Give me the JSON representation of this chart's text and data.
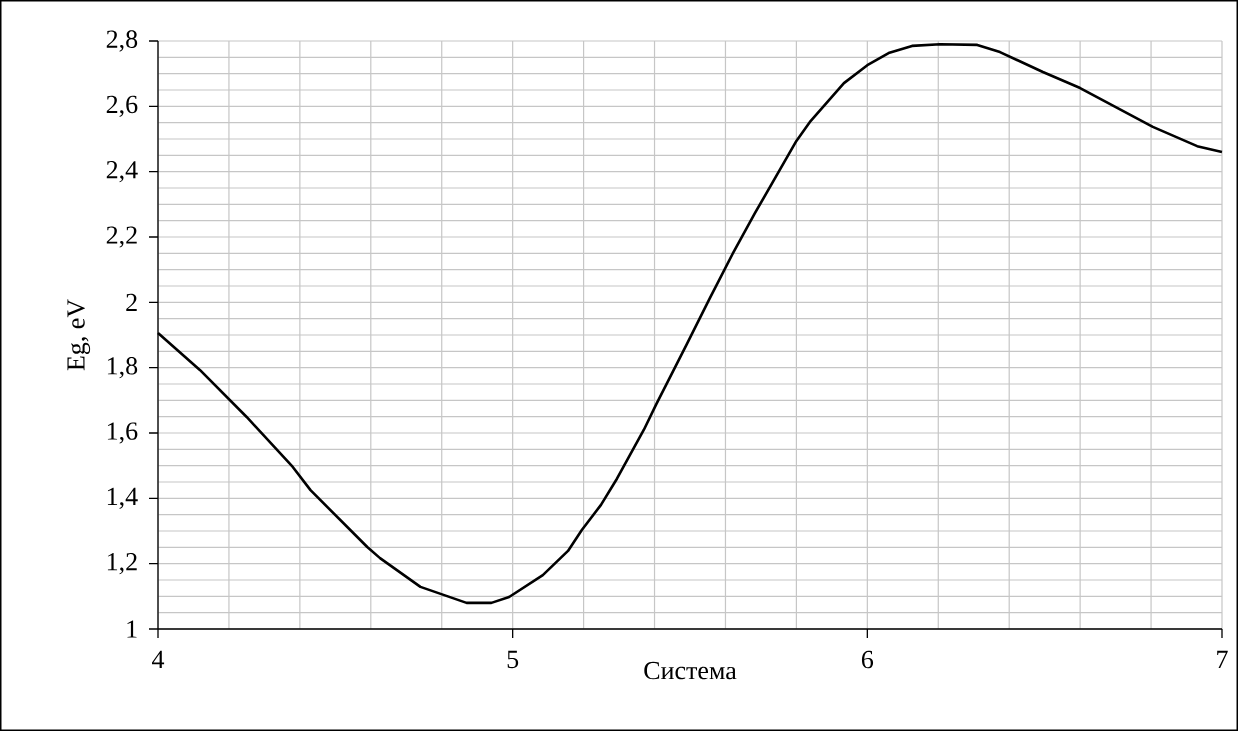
{
  "chart_data": {
    "type": "line",
    "xlabel": "Система",
    "ylabel": "Eg, eV",
    "color": "#000000",
    "grid": true,
    "marker": "none",
    "line_style": "solid",
    "x": [
      4.0,
      4.118,
      4.25,
      4.38,
      4.43,
      4.59,
      4.626,
      4.74,
      4.87,
      4.94,
      4.99,
      5.085,
      5.156,
      5.195,
      5.249,
      5.294,
      5.37,
      5.404,
      5.49,
      5.556,
      5.62,
      5.683,
      5.8,
      5.84,
      5.934,
      6.0,
      6.06,
      6.126,
      6.205,
      6.31,
      6.374,
      6.495,
      6.6,
      6.805,
      6.93,
      7.0
    ],
    "values": [
      1.906,
      1.793,
      1.649,
      1.496,
      1.425,
      1.251,
      1.217,
      1.129,
      1.08,
      1.08,
      1.098,
      1.165,
      1.239,
      1.303,
      1.38,
      1.46,
      1.61,
      1.686,
      1.87,
      2.013,
      2.148,
      2.273,
      2.494,
      2.555,
      2.671,
      2.726,
      2.763,
      2.785,
      2.79,
      2.788,
      2.766,
      2.705,
      2.656,
      2.537,
      2.478,
      2.46
    ],
    "xlim": [
      4,
      7
    ],
    "ylim": [
      1,
      2.8
    ],
    "xticks": [
      4,
      {
        "value": 4.2,
        "label": null
      },
      {
        "value": 4.4,
        "label": null
      },
      {
        "value": 4.6,
        "label": null
      },
      {
        "value": 4.8,
        "label": null
      },
      5,
      {
        "value": 5.2,
        "label": null
      },
      {
        "value": 5.4,
        "label": null
      },
      {
        "value": 5.6,
        "label": null
      },
      {
        "value": 5.8,
        "label": null
      },
      6,
      {
        "value": 6.2,
        "label": null
      },
      {
        "value": 6.4,
        "label": null
      },
      {
        "value": 6.6,
        "label": null
      },
      {
        "value": 6.8,
        "label": null
      },
      7
    ],
    "yticks": [
      1,
      {
        "value": 1.05,
        "label": null
      },
      {
        "value": 1.1,
        "label": null
      },
      {
        "value": 1.15,
        "label": null
      },
      {
        "value": 1.2,
        "label": "1,2"
      },
      {
        "value": 1.25,
        "label": null
      },
      {
        "value": 1.3,
        "label": null
      },
      {
        "value": 1.35,
        "label": null
      },
      {
        "value": 1.4,
        "label": "1,4"
      },
      {
        "value": 1.45,
        "label": null
      },
      {
        "value": 1.5,
        "label": null
      },
      {
        "value": 1.55,
        "label": null
      },
      {
        "value": 1.6,
        "label": "1,6"
      },
      {
        "value": 1.65,
        "label": null
      },
      {
        "value": 1.7,
        "label": null
      },
      {
        "value": 1.75,
        "label": null
      },
      {
        "value": 1.8,
        "label": "1,8"
      },
      {
        "value": 1.85,
        "label": null
      },
      {
        "value": 1.9,
        "label": null
      },
      {
        "value": 1.95,
        "label": null
      },
      2,
      {
        "value": 2.05,
        "label": null
      },
      {
        "value": 2.1,
        "label": null
      },
      {
        "value": 2.15,
        "label": null
      },
      {
        "value": 2.2,
        "label": "2,2"
      },
      {
        "value": 2.25,
        "label": null
      },
      {
        "value": 2.3,
        "label": null
      },
      {
        "value": 2.35,
        "label": null
      },
      {
        "value": 2.4,
        "label": "2,4"
      },
      {
        "value": 2.45,
        "label": null
      },
      {
        "value": 2.5,
        "label": null
      },
      {
        "value": 2.55,
        "label": null
      },
      {
        "value": 2.6,
        "label": "2,6"
      },
      {
        "value": 2.65,
        "label": null
      },
      {
        "value": 2.7,
        "label": null
      },
      {
        "value": 2.75,
        "label": null
      },
      {
        "value": 2.8,
        "label": "2,8"
      }
    ]
  }
}
